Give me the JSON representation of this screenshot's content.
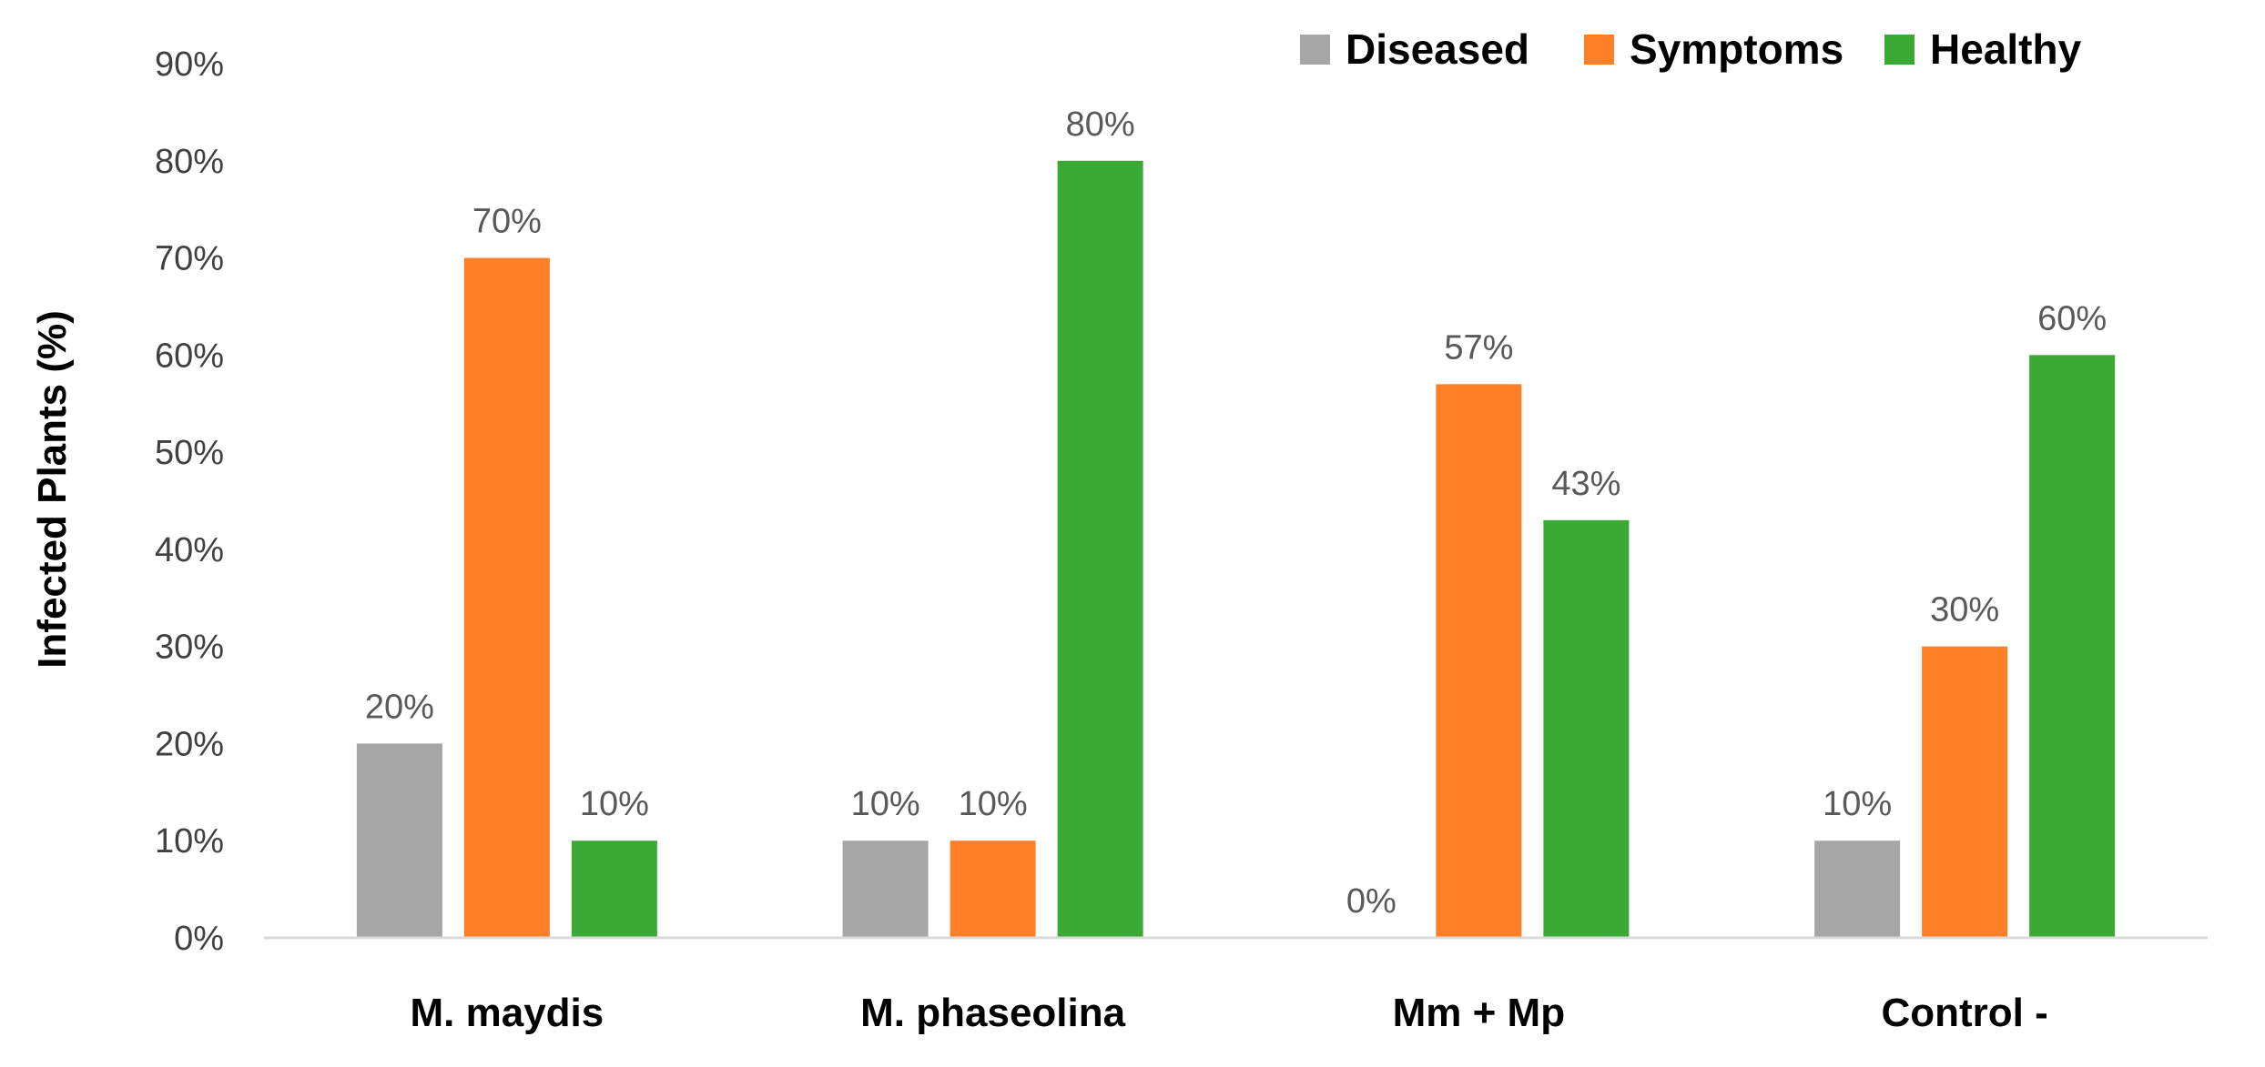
{
  "chart_data": {
    "type": "bar",
    "title": "",
    "xlabel": "",
    "ylabel": "Infected Plants (%)",
    "ylim": [
      0,
      90
    ],
    "y_ticks": [
      0,
      10,
      20,
      30,
      40,
      50,
      60,
      70,
      80,
      90
    ],
    "y_tick_labels": [
      "0%",
      "10%",
      "20%",
      "30%",
      "40%",
      "50%",
      "60%",
      "70%",
      "80%",
      "90%"
    ],
    "grid": false,
    "legend_position": "top-right",
    "categories": [
      "M. maydis",
      "M. phaseolina",
      "Mm + Mp",
      "Control -"
    ],
    "series": [
      {
        "name": "Diseased",
        "color": "#a6a6a6",
        "values": [
          20,
          10,
          0,
          10
        ],
        "labels": [
          "20%",
          "10%",
          "0%",
          "10%"
        ]
      },
      {
        "name": "Symptoms",
        "color": "#ff7f27",
        "values": [
          70,
          10,
          57,
          30
        ],
        "labels": [
          "70%",
          "10%",
          "57%",
          "30%"
        ]
      },
      {
        "name": "Healthy",
        "color": "#3aaa35",
        "values": [
          10,
          80,
          43,
          60
        ],
        "labels": [
          "10%",
          "80%",
          "43%",
          "60%"
        ]
      }
    ]
  }
}
